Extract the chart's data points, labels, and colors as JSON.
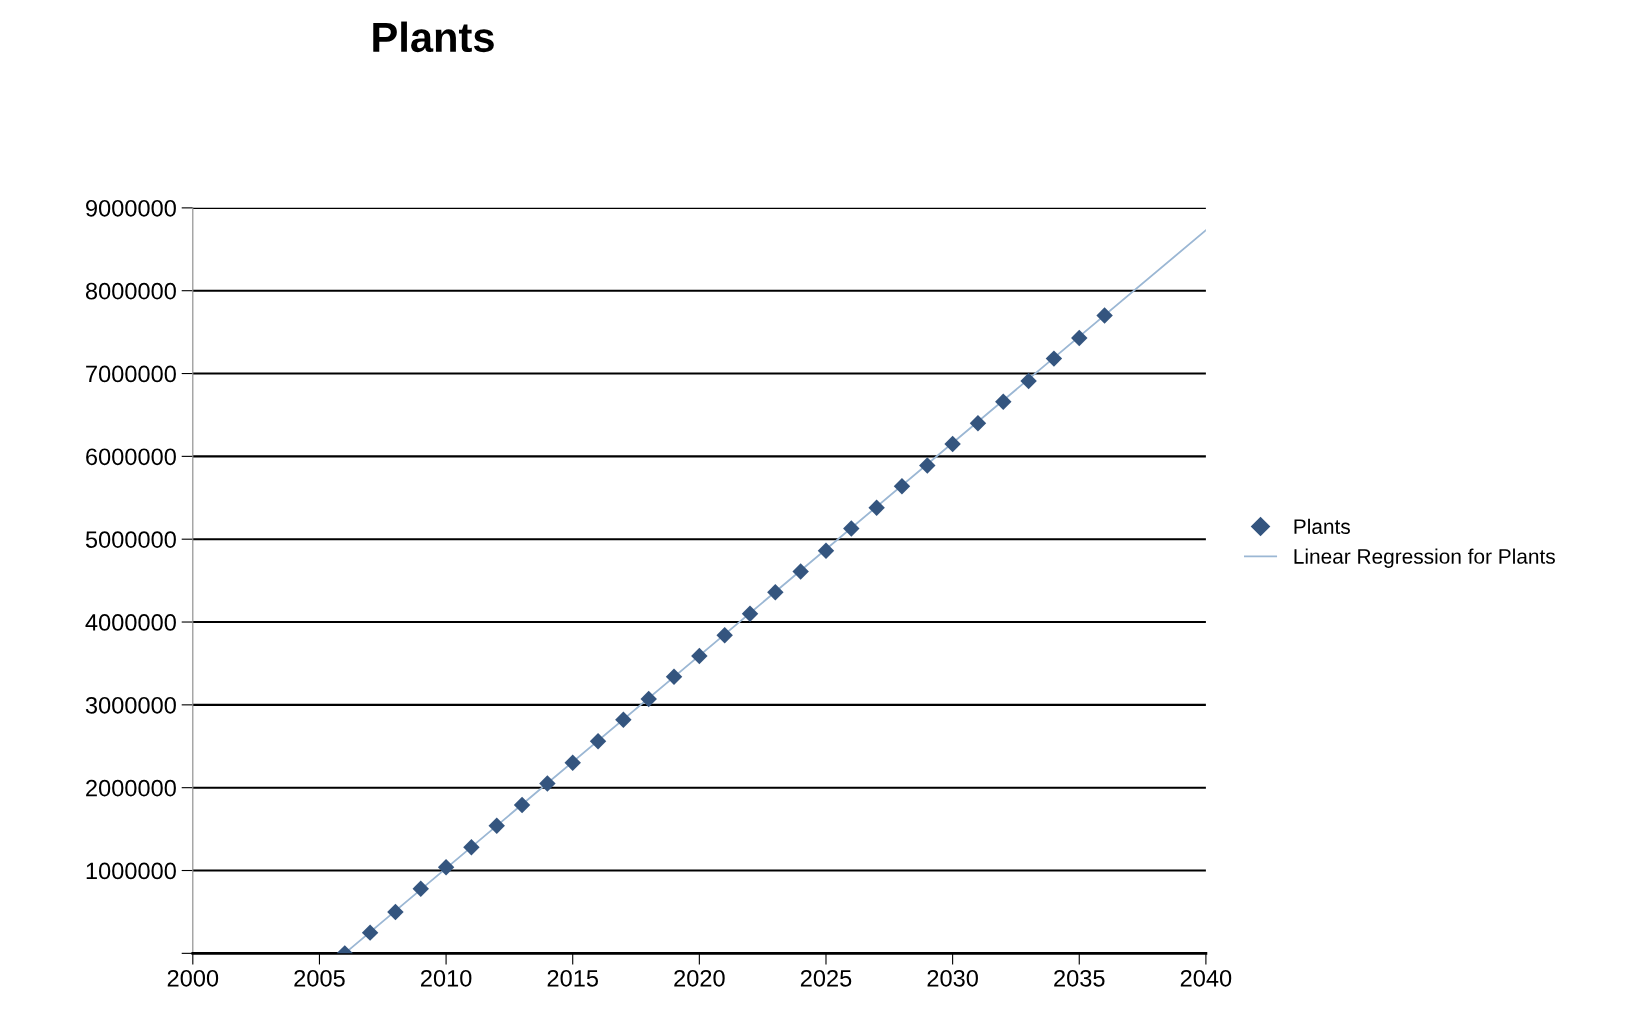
{
  "chart_data": {
    "type": "scatter",
    "title": "Plants",
    "x": [
      2006,
      2007,
      2008,
      2009,
      2010,
      2011,
      2012,
      2013,
      2014,
      2015,
      2016,
      2017,
      2018,
      2019,
      2020,
      2021,
      2022,
      2023,
      2024,
      2025,
      2026,
      2027,
      2028,
      2029,
      2030,
      2031,
      2032,
      2033,
      2034,
      2035,
      2036
    ],
    "series": [
      {
        "name": "Plants",
        "color": "#34557f",
        "marker": "diamond",
        "values": [
          0,
          250000,
          500000,
          780000,
          1040000,
          1280000,
          1540000,
          1790000,
          2050000,
          2300000,
          2560000,
          2820000,
          3070000,
          3340000,
          3590000,
          3840000,
          4100000,
          4360000,
          4610000,
          4860000,
          5130000,
          5380000,
          5640000,
          5890000,
          6150000,
          6400000,
          6660000,
          6910000,
          7180000,
          7430000,
          7700000
        ]
      },
      {
        "name": "Linear Regression for Plants",
        "type": "line",
        "color": "#9bb7d4",
        "x": [
          2006,
          2040
        ],
        "values": [
          0,
          8730000
        ]
      }
    ],
    "xlim": [
      2000,
      2040
    ],
    "xticks": [
      2000,
      2005,
      2010,
      2015,
      2020,
      2025,
      2030,
      2035,
      2040
    ],
    "ylim": [
      0,
      9000000
    ],
    "yticks": [
      {
        "value": 0,
        "label": null
      },
      1000000,
      2000000,
      3000000,
      4000000,
      5000000,
      6000000,
      7000000,
      8000000,
      9000000
    ],
    "grid": "y",
    "legend": "right"
  }
}
